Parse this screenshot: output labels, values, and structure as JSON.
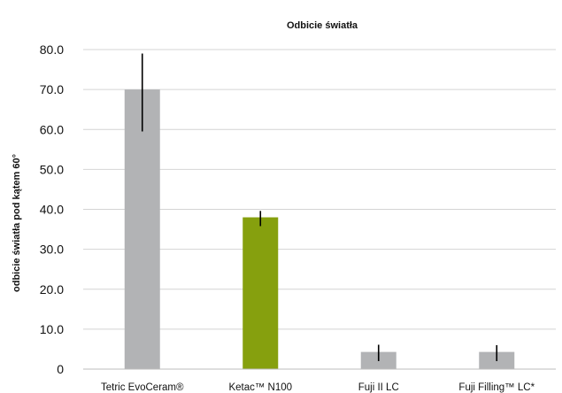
{
  "chart_data": {
    "type": "bar",
    "title": "Odbicie światła",
    "xlabel": "",
    "ylabel": "odbicie światła pod kątem 60°",
    "ylim": [
      0,
      80
    ],
    "yticks": [
      "0",
      "10.0",
      "20.0",
      "30.0",
      "40.0",
      "50.0",
      "60.0",
      "70.0",
      "80.0"
    ],
    "grid": true,
    "legend": "none",
    "categories": [
      "Tetric EvoCeram®",
      "Ketac™ N100",
      "Fuji II LC",
      "Fuji Filling™ LC*"
    ],
    "values": [
      70.0,
      38.0,
      4.3,
      4.3
    ],
    "error_low": [
      59.5,
      35.8,
      2.0,
      2.0
    ],
    "error_high": [
      79.0,
      39.6,
      6.1,
      6.0
    ],
    "colors": [
      "#b2b3b5",
      "#86a00e",
      "#b2b3b5",
      "#b2b3b5"
    ]
  }
}
